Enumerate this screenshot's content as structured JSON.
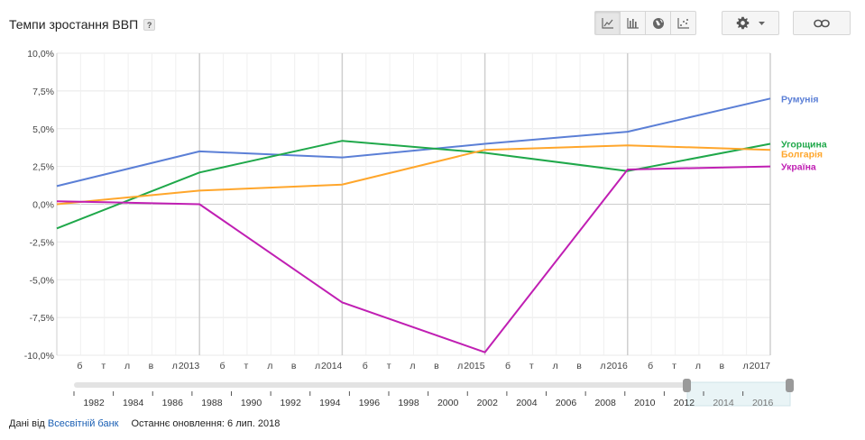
{
  "header": {
    "title": "Темпи зростання ВВП",
    "help": "?"
  },
  "toolbar": {
    "views": [
      {
        "icon": "line-chart-icon",
        "active": true
      },
      {
        "icon": "bar-chart-icon",
        "active": false
      },
      {
        "icon": "globe-map-icon",
        "active": false
      },
      {
        "icon": "scatter-chart-icon",
        "active": false
      }
    ],
    "settings_icon": "gear-icon",
    "dropdown_icon": "caret-down-icon",
    "link_icon": "link-icon"
  },
  "footer": {
    "source_prefix": "Дані від",
    "source_link": "Всесвітній банк",
    "updated": "Останнє оновлення: 6 лип. 2018"
  },
  "chart_data": {
    "type": "line",
    "x": [
      "2012",
      "2013",
      "2014",
      "2015",
      "2016",
      "2017"
    ],
    "ylim": [
      -10,
      10
    ],
    "yticks": [
      10,
      7.5,
      5,
      2.5,
      0,
      -2.5,
      -5,
      -7.5,
      -10
    ],
    "ytick_labels": [
      "10,0%",
      "7,5%",
      "5,0%",
      "2,5%",
      "0,0%",
      "-2,5%",
      "-5,0%",
      "-7,5%",
      "-10,0%"
    ],
    "xtick_labels": [
      "б",
      "т",
      "л",
      "в",
      "л",
      "2013",
      "б",
      "т",
      "л",
      "в",
      "л",
      "2014",
      "б",
      "т",
      "л",
      "в",
      "л",
      "2015",
      "б",
      "т",
      "л",
      "в",
      "л",
      "2016",
      "б",
      "т",
      "л",
      "в",
      "л",
      "2017"
    ],
    "grid": true,
    "legend": "right, inline at line ends",
    "series": [
      {
        "name": "Румунія",
        "color": "#5b7fd6",
        "values": [
          1.2,
          3.5,
          3.1,
          4.0,
          4.8,
          7.0
        ]
      },
      {
        "name": "Угорщина",
        "color": "#1fa84a",
        "values": [
          -1.6,
          2.1,
          4.2,
          3.4,
          2.2,
          4.0
        ]
      },
      {
        "name": "Болгарія",
        "color": "#ffa62b",
        "values": [
          0.0,
          0.9,
          1.3,
          3.6,
          3.9,
          3.6
        ]
      },
      {
        "name": "Україна",
        "color": "#c01fb3",
        "values": [
          0.2,
          0.0,
          -6.5,
          -9.8,
          2.3,
          2.5
        ]
      }
    ]
  },
  "range_selector": {
    "labels": [
      "1982",
      "1984",
      "1986",
      "1988",
      "1990",
      "1992",
      "1994",
      "1996",
      "1998",
      "2000",
      "2002",
      "2004",
      "2006",
      "2008",
      "2010",
      "2012",
      "2014",
      "2016"
    ],
    "selected_from": "2012",
    "selected_to": "2017"
  }
}
